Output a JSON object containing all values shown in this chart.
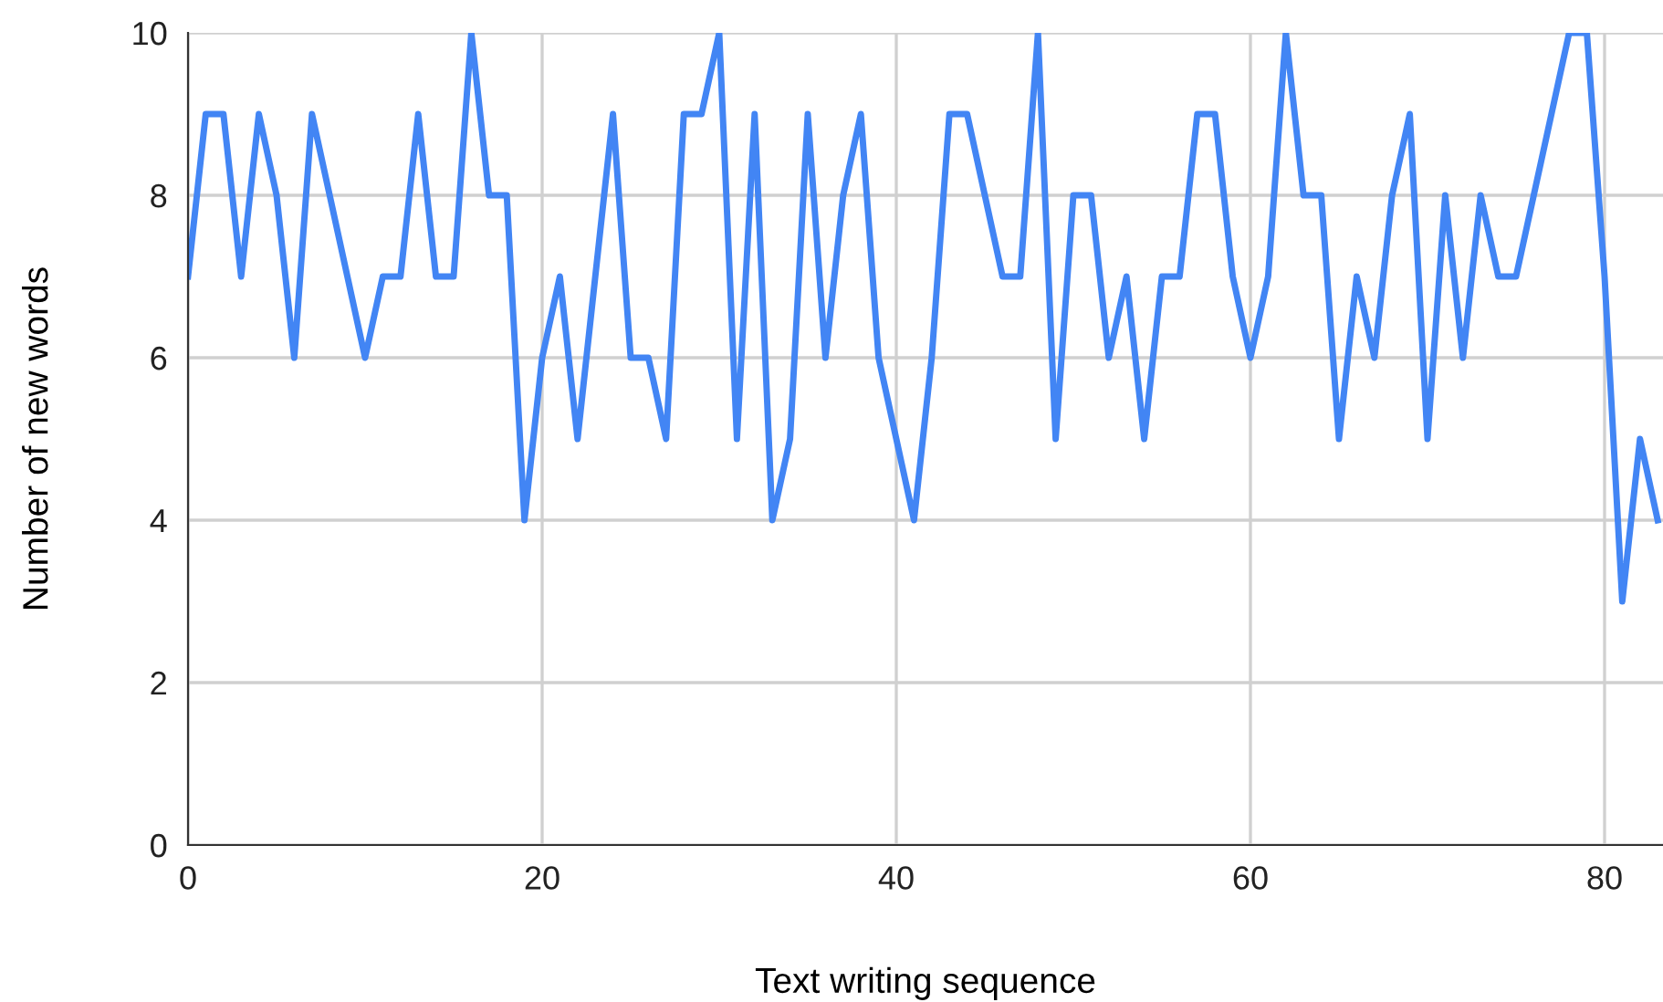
{
  "chart_data": {
    "type": "line",
    "xlabel": "Text writing sequence",
    "ylabel": "Number of new words",
    "x": [
      0,
      1,
      2,
      3,
      4,
      5,
      6,
      7,
      8,
      9,
      10,
      11,
      12,
      13,
      14,
      15,
      16,
      17,
      18,
      19,
      20,
      21,
      22,
      23,
      24,
      25,
      26,
      27,
      28,
      29,
      30,
      31,
      32,
      33,
      34,
      35,
      36,
      37,
      38,
      39,
      40,
      41,
      42,
      43,
      44,
      45,
      46,
      47,
      48,
      49,
      50,
      51,
      52,
      53,
      54,
      55,
      56,
      57,
      58,
      59,
      60,
      61,
      62,
      63,
      64,
      65,
      66,
      67,
      68,
      69,
      70,
      71,
      72,
      73,
      74,
      75,
      76,
      77,
      78,
      79,
      80,
      81,
      82,
      83
    ],
    "series": [
      {
        "color": "#4285f4",
        "values": [
          7,
          9,
          9,
          7,
          9,
          8,
          6,
          9,
          8,
          7,
          6,
          7,
          7,
          9,
          7,
          7,
          10,
          8,
          8,
          4,
          6,
          7,
          5,
          7,
          9,
          6,
          6,
          5,
          9,
          9,
          10,
          5,
          9,
          4,
          5,
          9,
          6,
          8,
          9,
          6,
          5,
          4,
          6,
          9,
          9,
          8,
          7,
          7,
          10,
          5,
          8,
          8,
          6,
          7,
          5,
          7,
          7,
          9,
          9,
          7,
          6,
          7,
          10,
          8,
          8,
          5,
          7,
          6,
          8,
          9,
          5,
          8,
          6,
          8,
          7,
          7,
          8,
          9,
          10,
          10,
          7,
          3,
          5,
          4
        ]
      }
    ],
    "xlim": [
      0,
      83.3
    ],
    "xticks": [
      0,
      20,
      40,
      60,
      80
    ],
    "ylim": [
      0,
      10
    ],
    "yticks": [
      0,
      2,
      4,
      6,
      8,
      10
    ],
    "grid": true,
    "marker": "none",
    "line_style": "solid"
  }
}
